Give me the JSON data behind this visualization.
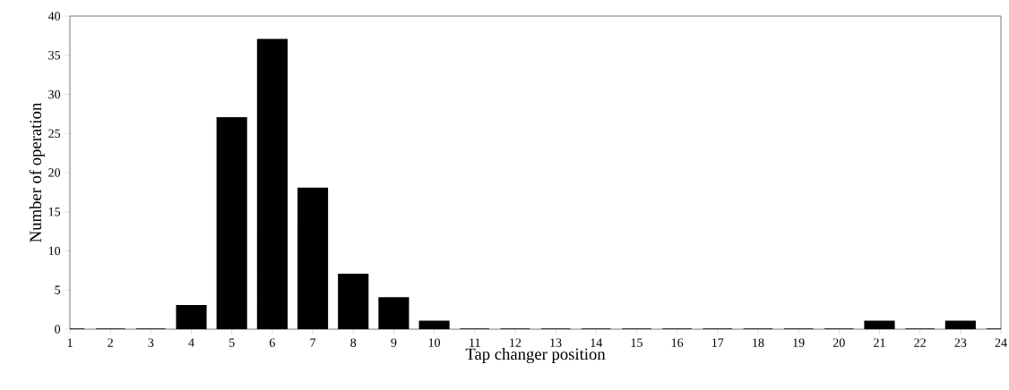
{
  "chart_data": {
    "type": "bar",
    "xlabel": "Tap changer position",
    "ylabel": "Number of operation",
    "x": [
      1,
      2,
      3,
      4,
      5,
      6,
      7,
      8,
      9,
      10,
      11,
      12,
      13,
      14,
      15,
      16,
      17,
      18,
      19,
      20,
      21,
      22,
      23,
      24
    ],
    "values": [
      0,
      0,
      0,
      3,
      27,
      37,
      18,
      7,
      4,
      1,
      0,
      0,
      0,
      0,
      0,
      0,
      0,
      0,
      0,
      0,
      1,
      0,
      1,
      0
    ],
    "color": "#000000",
    "xlim": [
      1,
      24
    ],
    "xticks": [
      1,
      2,
      3,
      4,
      5,
      6,
      7,
      8,
      9,
      10,
      11,
      12,
      13,
      14,
      15,
      16,
      17,
      18,
      19,
      20,
      21,
      22,
      23,
      24
    ],
    "ylim": [
      0,
      40
    ],
    "yticks": [
      0,
      5,
      10,
      15,
      20,
      25,
      30,
      35,
      40
    ],
    "grid": false
  }
}
